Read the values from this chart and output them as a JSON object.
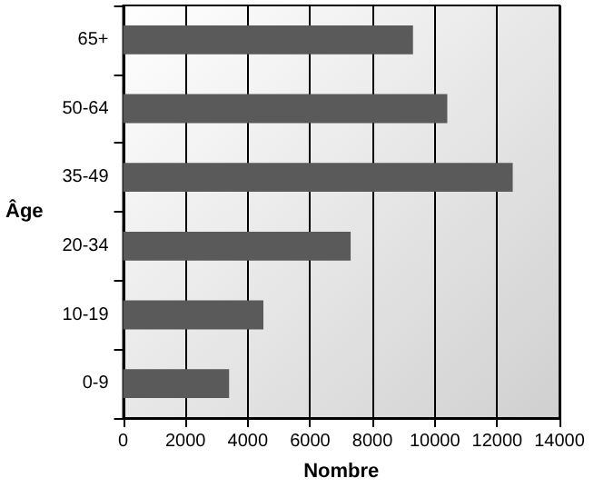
{
  "chart_data": {
    "type": "bar",
    "orientation": "horizontal",
    "xlabel": "Nombre",
    "ylabel": "Âge",
    "categories": [
      "65+",
      "50-64",
      "35-49",
      "20-34",
      "10-19",
      "0-9"
    ],
    "values": [
      9300,
      10400,
      12500,
      7300,
      4500,
      3400
    ],
    "color": "#5a5a5a",
    "xlim": [
      0,
      14000
    ],
    "xticks": [
      0,
      2000,
      4000,
      6000,
      8000,
      10000,
      12000,
      14000
    ],
    "grid": "x"
  }
}
